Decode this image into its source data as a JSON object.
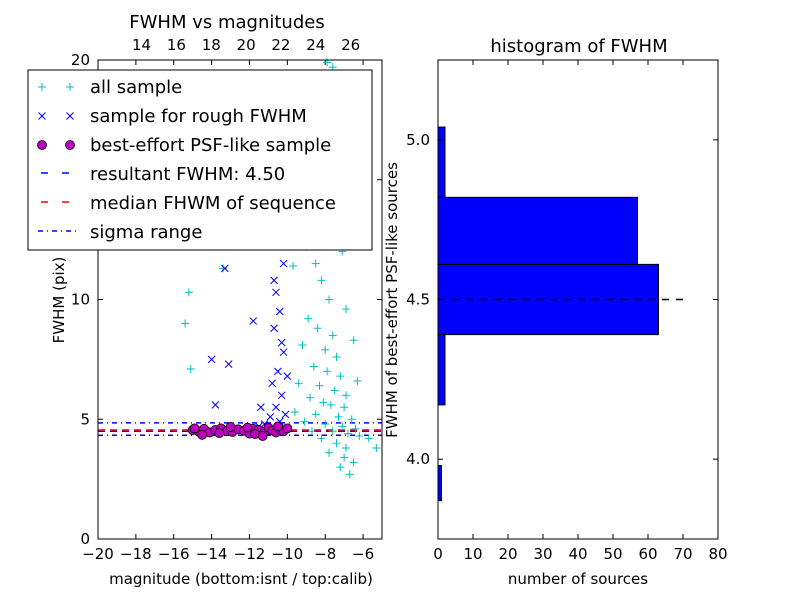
{
  "chart_data": [
    {
      "type": "scatter",
      "title": "FWHM vs magnitudes",
      "xlabel": "magnitude (bottom:isnt / top:calib)",
      "ylabel": "FWHM (pix)",
      "xlim": [
        -20,
        -5
      ],
      "ylim": [
        0,
        20
      ],
      "top_xlim": [
        11.5,
        27.8
      ],
      "x_ticks": [
        "−20",
        "−18",
        "−16",
        "−14",
        "−12",
        "−10",
        "−8",
        "−6"
      ],
      "x_tick_values": [
        -20,
        -18,
        -16,
        -14,
        -12,
        -10,
        -8,
        -6
      ],
      "y_ticks": [
        "0",
        "5",
        "10",
        "15",
        "20"
      ],
      "y_tick_values": [
        0,
        5,
        10,
        15,
        20
      ],
      "top_ticks": [
        "14",
        "16",
        "18",
        "20",
        "22",
        "24",
        "26"
      ],
      "top_tick_values": [
        14,
        16,
        18,
        20,
        22,
        24,
        26
      ],
      "legend_position": "top-left",
      "series": [
        {
          "name": "all sample",
          "marker": "plus",
          "color": "#00bfbf",
          "points": [
            [
              -15.4,
              9.0
            ],
            [
              -15.2,
              10.3
            ],
            [
              -15.1,
              7.1
            ],
            [
              -13.4,
              11.3
            ],
            [
              -12.2,
              13.6
            ],
            [
              -10.1,
              16.0
            ],
            [
              -9.3,
              14.5
            ],
            [
              -9.0,
              12.2
            ],
            [
              -8.5,
              11.5
            ],
            [
              -8.2,
              10.8
            ],
            [
              -7.8,
              10.0
            ],
            [
              -8.9,
              9.2
            ],
            [
              -8.4,
              8.8
            ],
            [
              -7.6,
              8.5
            ],
            [
              -9.2,
              8.1
            ],
            [
              -8.0,
              7.9
            ],
            [
              -7.4,
              7.6
            ],
            [
              -8.6,
              7.2
            ],
            [
              -7.9,
              7.0
            ],
            [
              -7.2,
              6.8
            ],
            [
              -9.4,
              6.5
            ],
            [
              -8.3,
              6.4
            ],
            [
              -7.5,
              6.2
            ],
            [
              -6.9,
              6.0
            ],
            [
              -8.8,
              5.9
            ],
            [
              -8.1,
              5.7
            ],
            [
              -7.7,
              5.6
            ],
            [
              -7.0,
              5.5
            ],
            [
              -9.6,
              5.3
            ],
            [
              -8.5,
              5.2
            ],
            [
              -7.3,
              5.1
            ],
            [
              -6.6,
              5.0
            ],
            [
              -9.1,
              4.9
            ],
            [
              -8.0,
              4.8
            ],
            [
              -7.1,
              4.7
            ],
            [
              -6.4,
              4.6
            ],
            [
              -8.7,
              4.5
            ],
            [
              -7.6,
              4.5
            ],
            [
              -6.8,
              4.4
            ],
            [
              -6.2,
              4.3
            ],
            [
              -8.2,
              4.2
            ],
            [
              -7.4,
              4.0
            ],
            [
              -6.9,
              3.8
            ],
            [
              -7.8,
              3.6
            ],
            [
              -7.0,
              3.4
            ],
            [
              -6.5,
              3.2
            ],
            [
              -7.2,
              3.0
            ],
            [
              -6.7,
              2.7
            ],
            [
              -5.7,
              4.2
            ],
            [
              -5.3,
              3.8
            ],
            [
              -7.9,
              19.9
            ],
            [
              -7.6,
              19.7
            ],
            [
              -8.4,
              18.5
            ],
            [
              -8.8,
              17.4
            ],
            [
              -7.8,
              17.0
            ],
            [
              -9.5,
              16.3
            ],
            [
              -8.0,
              15.4
            ],
            [
              -7.3,
              14.9
            ],
            [
              -8.6,
              14.0
            ],
            [
              -7.5,
              13.2
            ],
            [
              -8.3,
              12.6
            ],
            [
              -7.1,
              12.0
            ],
            [
              -9.7,
              11.4
            ],
            [
              -6.9,
              9.6
            ],
            [
              -6.5,
              8.3
            ],
            [
              -6.3,
              6.6
            ]
          ]
        },
        {
          "name": "sample for rough FWHM",
          "marker": "x",
          "color": "#0000ff",
          "points": [
            [
              -13.3,
              11.3
            ],
            [
              -11.8,
              9.1
            ],
            [
              -13.1,
              7.3
            ],
            [
              -14.0,
              7.5
            ],
            [
              -13.8,
              5.6
            ],
            [
              -11.0,
              16.4
            ],
            [
              -10.8,
              12.6
            ],
            [
              -10.6,
              10.3
            ],
            [
              -10.7,
              8.8
            ],
            [
              -10.4,
              9.5
            ],
            [
              -10.5,
              7.0
            ],
            [
              -10.2,
              7.8
            ],
            [
              -10.8,
              6.5
            ],
            [
              -10.3,
              6.0
            ],
            [
              -10.6,
              5.5
            ],
            [
              -10.1,
              5.2
            ],
            [
              -10.9,
              5.1
            ],
            [
              -10.4,
              4.9
            ],
            [
              -11.2,
              4.8
            ],
            [
              -10.0,
              6.8
            ],
            [
              -10.3,
              8.2
            ],
            [
              -11.4,
              5.5
            ],
            [
              -12.3,
              12.7
            ],
            [
              -10.9,
              13.5
            ],
            [
              -10.2,
              11.5
            ],
            [
              -10.7,
              10.8
            ],
            [
              -10.0,
              14.5
            ],
            [
              -11.5,
              4.7
            ],
            [
              -12.7,
              4.6
            ]
          ]
        },
        {
          "name": "best-effort PSF-like sample",
          "marker": "circle",
          "color": "#bf00bf",
          "points": [
            [
              -15.0,
              4.55
            ],
            [
              -14.7,
              4.5
            ],
            [
              -14.4,
              4.6
            ],
            [
              -14.1,
              4.45
            ],
            [
              -13.8,
              4.55
            ],
            [
              -13.5,
              4.62
            ],
            [
              -13.2,
              4.5
            ],
            [
              -12.9,
              4.47
            ],
            [
              -12.6,
              4.58
            ],
            [
              -12.3,
              4.52
            ],
            [
              -12.0,
              4.4
            ],
            [
              -11.8,
              4.6
            ],
            [
              -11.5,
              4.55
            ],
            [
              -11.2,
              4.48
            ],
            [
              -11.0,
              4.65
            ],
            [
              -10.8,
              4.53
            ],
            [
              -10.6,
              4.45
            ],
            [
              -10.4,
              4.58
            ],
            [
              -10.2,
              4.5
            ],
            [
              -10.0,
              4.62
            ],
            [
              -14.5,
              4.35
            ],
            [
              -13.0,
              4.68
            ],
            [
              -11.7,
              4.38
            ],
            [
              -10.5,
              4.7
            ],
            [
              -12.1,
              4.65
            ],
            [
              -13.6,
              4.42
            ],
            [
              -14.9,
              4.62
            ],
            [
              -11.3,
              4.3
            ]
          ]
        }
      ],
      "lines": [
        {
          "name": "resultant FWHM: 4.50",
          "y": 4.5,
          "style": "dashed",
          "color": "#0000ff"
        },
        {
          "name": "median FHWM of sequence",
          "y": 4.55,
          "style": "dashed",
          "color": "#ff0000"
        },
        {
          "name": "sigma range",
          "y": [
            4.33,
            4.85
          ],
          "style": "dashdot",
          "color": "#0000ff"
        }
      ],
      "legend": [
        "all sample",
        "sample for rough FWHM",
        "best-effort PSF-like sample",
        "resultant FWHM: 4.50",
        "median FHWM of sequence",
        "sigma range"
      ]
    },
    {
      "type": "bar",
      "orientation": "horizontal",
      "title": "histogram of FWHM",
      "xlabel": "number of sources",
      "ylabel": "FWHM of best-effort PSF-like sources",
      "xlim": [
        0,
        80
      ],
      "ylim": [
        3.75,
        5.25
      ],
      "x_ticks": [
        "0",
        "10",
        "20",
        "30",
        "40",
        "50",
        "60",
        "70",
        "80"
      ],
      "x_tick_values": [
        0,
        10,
        20,
        30,
        40,
        50,
        60,
        70,
        80
      ],
      "y_ticks": [
        "4.0",
        "4.5",
        "5.0"
      ],
      "y_tick_values": [
        4.0,
        4.5,
        5.0
      ],
      "bars": [
        {
          "from": 3.87,
          "to": 3.98,
          "value": 1
        },
        {
          "from": 4.17,
          "to": 4.39,
          "value": 2
        },
        {
          "from": 4.39,
          "to": 4.61,
          "value": 63
        },
        {
          "from": 4.61,
          "to": 4.82,
          "value": 57
        },
        {
          "from": 4.82,
          "to": 5.04,
          "value": 2
        }
      ],
      "reference_line": {
        "y": 4.5,
        "style": "dashed",
        "color": "#000000"
      },
      "bar_color": "#0000ff"
    }
  ]
}
